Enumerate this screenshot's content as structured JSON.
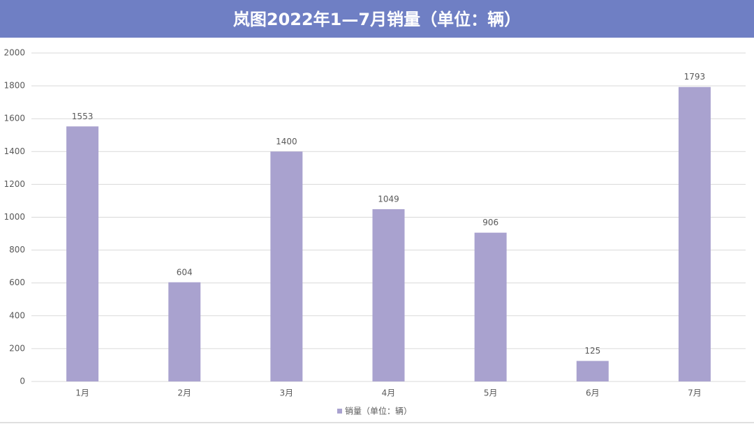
{
  "chart_data": {
    "type": "bar",
    "title": "岚图2022年1—7月销量（单位：辆）",
    "categories": [
      "1月",
      "2月",
      "3月",
      "4月",
      "5月",
      "6月",
      "7月"
    ],
    "series": [
      {
        "name": "销量（单位：辆）",
        "color": "#a9a2cf",
        "values": [
          1553,
          604,
          1400,
          1049,
          906,
          125,
          1793
        ]
      }
    ],
    "ylim": [
      0,
      2000
    ],
    "yticks": [
      0,
      200,
      400,
      600,
      800,
      1000,
      1200,
      1400,
      1600,
      1800,
      2000
    ],
    "grid": true,
    "legend": "bottom"
  }
}
